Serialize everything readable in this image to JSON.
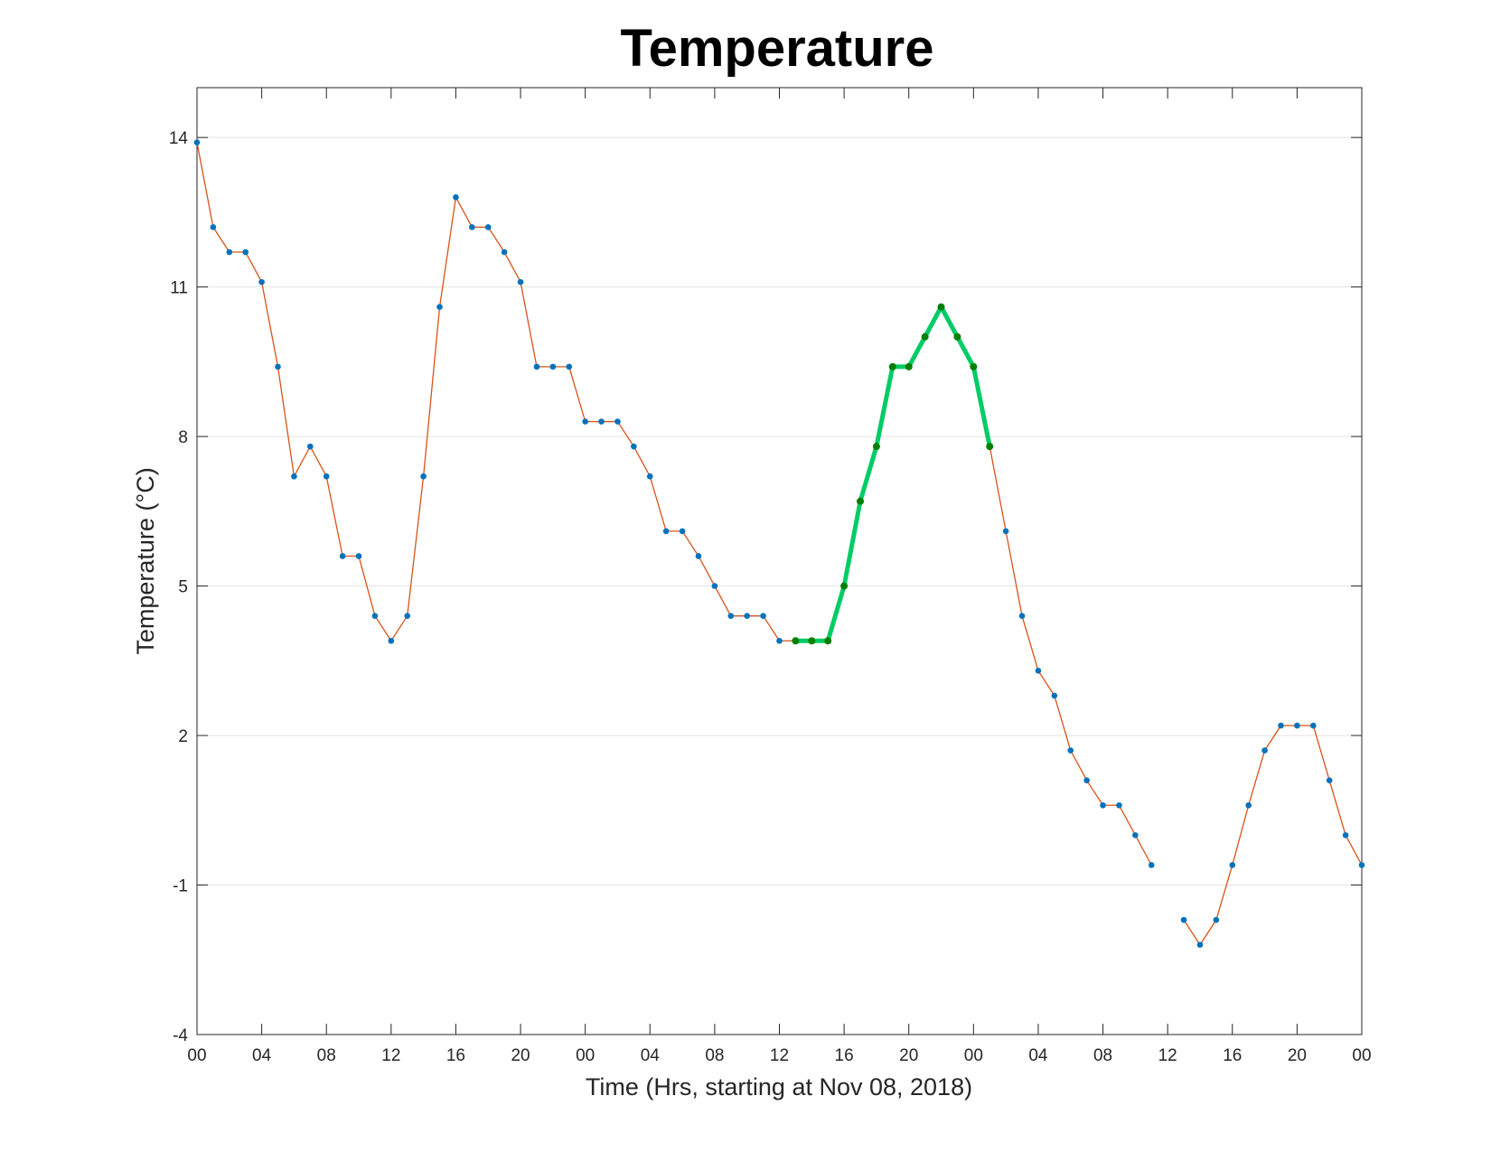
{
  "chart_data": {
    "type": "line",
    "title": "Temperature",
    "xlabel": "Time (Hrs, starting at Nov 08, 2018)",
    "ylabel": "Temperature (°C)",
    "ylim": [
      -4,
      15
    ],
    "yticks": [
      -4,
      -1,
      2,
      5,
      8,
      11,
      14
    ],
    "xlim": [
      0,
      72
    ],
    "xticks": [
      0,
      4,
      8,
      12,
      16,
      20,
      24,
      28,
      32,
      36,
      40,
      44,
      48,
      52,
      56,
      60,
      64,
      68,
      72
    ],
    "xtick_labels": [
      "00",
      "04",
      "08",
      "12",
      "16",
      "20",
      "00",
      "04",
      "08",
      "12",
      "16",
      "20",
      "00",
      "04",
      "08",
      "12",
      "16",
      "20",
      "00"
    ],
    "grid": "horizontal",
    "x": [
      0,
      1,
      2,
      3,
      4,
      5,
      6,
      7,
      8,
      9,
      10,
      11,
      12,
      13,
      14,
      15,
      16,
      17,
      18,
      19,
      20,
      21,
      22,
      23,
      24,
      25,
      26,
      27,
      28,
      29,
      30,
      31,
      32,
      33,
      34,
      35,
      36,
      37,
      38,
      39,
      40,
      41,
      42,
      43,
      44,
      45,
      46,
      47,
      48,
      49,
      50,
      51,
      52,
      53,
      54,
      55,
      56,
      57,
      58,
      59,
      60,
      61,
      62,
      63,
      64,
      65,
      66,
      67,
      68,
      69,
      70,
      71,
      72
    ],
    "series": [
      {
        "color": "#d95319",
        "marker_color": "#0072bd",
        "values": [
          13.9,
          12.2,
          11.7,
          11.7,
          11.1,
          9.4,
          7.2,
          7.8,
          7.2,
          5.6,
          5.6,
          4.4,
          3.9,
          4.4,
          7.2,
          10.6,
          12.8,
          12.2,
          12.2,
          11.7,
          11.1,
          9.4,
          9.4,
          9.4,
          8.3,
          8.3,
          8.3,
          7.8,
          7.2,
          6.1,
          6.1,
          5.6,
          5.0,
          4.4,
          4.4,
          4.4,
          3.9,
          3.9,
          3.9,
          3.9,
          5.0,
          6.7,
          7.8,
          9.4,
          9.4,
          10.0,
          10.6,
          10.0,
          9.4,
          7.8,
          6.1,
          4.4,
          3.3,
          2.8,
          1.7,
          1.1,
          0.6,
          0.6,
          0.0,
          -0.6,
          null,
          -1.7,
          -2.2,
          -1.7,
          -0.6,
          0.6,
          1.7,
          2.2,
          2.2,
          2.2,
          1.1,
          0.0,
          -0.6
        ]
      }
    ],
    "highlight": {
      "color": "#00cc66",
      "marker_color": "#008000",
      "x_start": 37,
      "x_end": 49
    }
  }
}
